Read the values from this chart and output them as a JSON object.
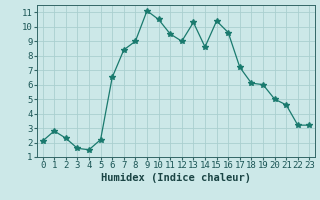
{
  "x": [
    0,
    1,
    2,
    3,
    4,
    5,
    6,
    7,
    8,
    9,
    10,
    11,
    12,
    13,
    14,
    15,
    16,
    17,
    18,
    19,
    20,
    21,
    22,
    23
  ],
  "y": [
    2.1,
    2.8,
    2.3,
    1.6,
    1.5,
    2.2,
    6.5,
    8.4,
    9.0,
    11.1,
    10.5,
    9.5,
    9.0,
    10.3,
    8.6,
    10.4,
    9.6,
    7.2,
    6.1,
    6.0,
    5.0,
    4.6,
    3.2,
    3.2
  ],
  "line_color": "#1a7a6e",
  "marker": "*",
  "marker_size": 4,
  "bg_color": "#cce8e8",
  "grid_color": "#aacfcf",
  "xlabel": "Humidex (Indice chaleur)",
  "xlim": [
    -0.5,
    23.5
  ],
  "ylim": [
    1,
    11.5
  ],
  "yticks": [
    1,
    2,
    3,
    4,
    5,
    6,
    7,
    8,
    9,
    10,
    11
  ],
  "xticks": [
    0,
    1,
    2,
    3,
    4,
    5,
    6,
    7,
    8,
    9,
    10,
    11,
    12,
    13,
    14,
    15,
    16,
    17,
    18,
    19,
    20,
    21,
    22,
    23
  ],
  "xlabel_fontsize": 7.5,
  "tick_fontsize": 6.5
}
